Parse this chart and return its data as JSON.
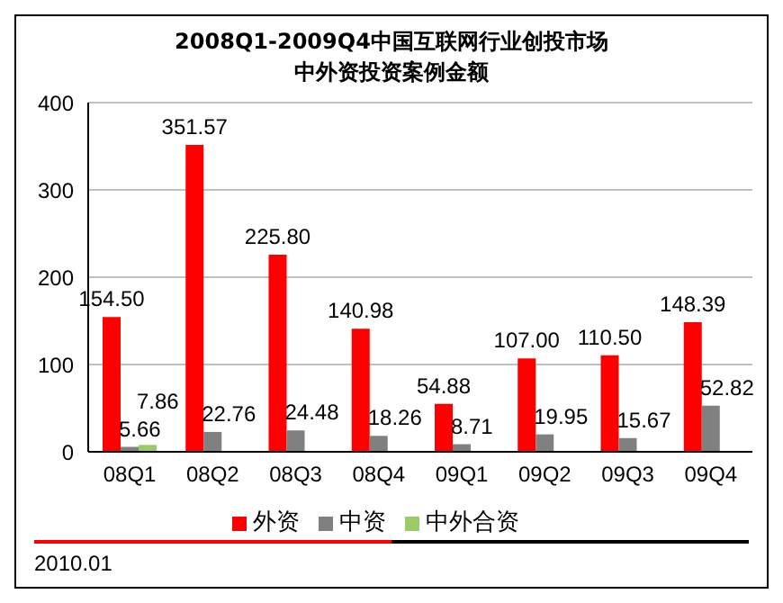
{
  "chart_data": {
    "type": "bar",
    "title": "2008Q1-2009Q4中国互联网行业创投市场",
    "subtitle": "中外资投资案例金额",
    "categories": [
      "08Q1",
      "08Q2",
      "08Q3",
      "08Q4",
      "09Q1",
      "09Q2",
      "09Q3",
      "09Q4"
    ],
    "series": [
      {
        "name": "外资",
        "color": "#ff0000",
        "values": [
          154.5,
          351.57,
          225.8,
          140.98,
          54.88,
          107.0,
          110.5,
          148.39
        ],
        "value_labels": [
          "154.50",
          "351.57",
          "225.80",
          "140.98",
          "54.88",
          "107.00",
          "110.50",
          "148.39"
        ]
      },
      {
        "name": "中资",
        "color": "#808080",
        "values": [
          5.66,
          22.76,
          24.48,
          18.26,
          8.71,
          19.95,
          15.67,
          52.82
        ],
        "value_labels": [
          "5.66",
          "22.76",
          "24.48",
          "18.26",
          "8.71",
          "19.95",
          "15.67",
          "52.82"
        ]
      },
      {
        "name": "中外合资",
        "color": "#99cc66",
        "values": [
          7.86,
          null,
          null,
          null,
          null,
          null,
          null,
          null
        ],
        "value_labels": [
          "7.86",
          null,
          null,
          null,
          null,
          null,
          null,
          null
        ]
      }
    ],
    "ylim": [
      0,
      400
    ],
    "yticks": [
      0,
      100,
      200,
      300,
      400
    ],
    "grid": "y",
    "legend": "bottom",
    "annotations": [
      "2010.01"
    ]
  }
}
